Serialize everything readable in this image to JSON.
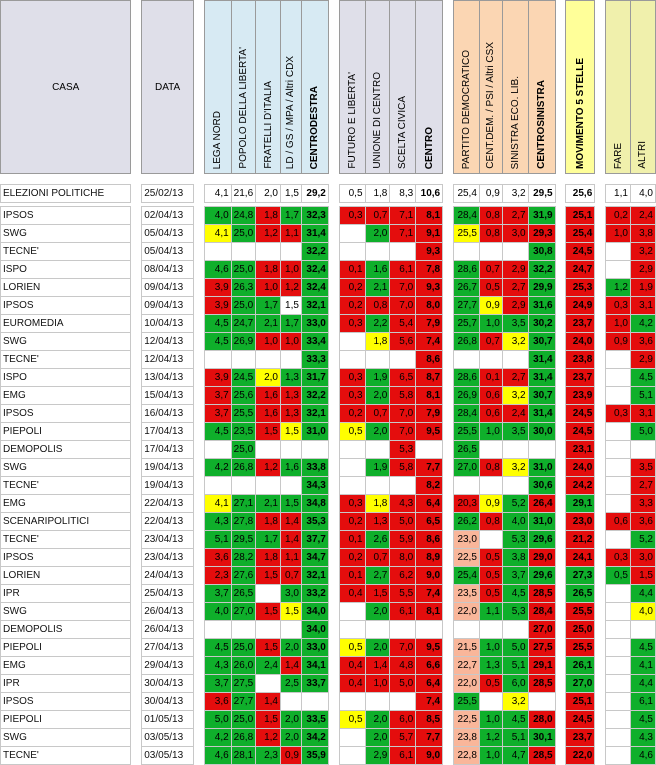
{
  "headers": {
    "casa": "CASA",
    "data": "DATA",
    "centrodestra_parties": [
      "LEGA NORD",
      "POPOLO DELLA LIBERTA'",
      "FRATELLI D'ITALIA",
      "LD / GS / MPA / Altri CDX"
    ],
    "centrodestra_total": "CENTRODESTRA",
    "centro_parties": [
      "FUTURO E LIBERTA'",
      "UNIONE DI CENTRO",
      "SCELTA CIVICA"
    ],
    "centro_total": "CENTRO",
    "centrosinistra_parties": [
      "PARTITO DEMOCRATICO",
      "CENT.DEM. / PSI / Altri CSX",
      "SINISTRA ECO. LIB."
    ],
    "centrosinistra_total": "CENTROSINISTRA",
    "m5s": "MOVIMENTO 5 STELLE",
    "others": [
      "FARE",
      "ALTRI"
    ]
  },
  "colors": {
    "red": "#e40d0d",
    "green": "#0faf2b",
    "yellow": "#ffff00",
    "pink": "#f9b69a",
    "light_yellow": "#ffffbb",
    "header_grey": "#dfdfe9",
    "header_blue": "#d7eaf3",
    "header_orange": "#fbd6b3",
    "header_yellow": "#ffff99",
    "header_olive": "#f0f0ac"
  },
  "legend_codes": {
    "R": "red",
    "G": "green",
    "Y": "yellow",
    "P": "pink",
    "L": "light yellow",
    "W": "white"
  },
  "rows": [
    {
      "house": "ELEZIONI POLITICHE",
      "date": "25/02/13",
      "cells": [
        "4,1:W",
        "21,6:W",
        "2,0:W",
        "1,5:W",
        "29,2:W",
        "0,5:W",
        "1,8:W",
        "8,3:W",
        "10,6:W",
        "25,4:W",
        "0,9:W",
        "3,2:W",
        "29,5:W",
        "25,6:W",
        "1,1:W",
        "4,0:W"
      ]
    },
    {
      "house": "IPSOS",
      "date": "02/04/13",
      "cells": [
        "4,0:G",
        "24,8:G",
        "1,8:R",
        "1,7:G",
        "32,3:G",
        "0,3:R",
        "0,7:R",
        "7,1:R",
        "8,1:R",
        "28,4:G",
        "0,8:R",
        "2,7:R",
        "31,9:G",
        "25,1:R",
        "0,2:R",
        "2,4:R"
      ]
    },
    {
      "house": "SWG",
      "date": "05/04/13",
      "cells": [
        "4,1:Y",
        "25,0:G",
        "1,2:R",
        "1,1:R",
        "31,4:G",
        "",
        "2,0:G",
        "7,1:R",
        "9,1:R",
        "25,5:Y",
        "0,8:R",
        "3,0:R",
        "29,3:R",
        "25,4:R",
        "1,0:R",
        "3,8:R"
      ]
    },
    {
      "house": "TECNE'",
      "date": "05/04/13",
      "cells": [
        "",
        "",
        "",
        "",
        "32,2:G",
        "",
        "",
        "",
        "9,3:R",
        "",
        "",
        "",
        "30,8:G",
        "24,5:R",
        "",
        "3,2:R"
      ]
    },
    {
      "house": "ISPO",
      "date": "08/04/13",
      "cells": [
        "4,6:G",
        "25,0:G",
        "1,8:R",
        "1,0:R",
        "32,4:G",
        "0,1:R",
        "1,6:G",
        "6,1:R",
        "7,8:R",
        "28,6:G",
        "0,7:R",
        "2,9:R",
        "32,2:G",
        "24,7:R",
        "",
        "2,9:R"
      ]
    },
    {
      "house": "LORIEN",
      "date": "09/04/13",
      "cells": [
        "3,9:R",
        "26,3:G",
        "1,0:R",
        "1,2:R",
        "32,4:G",
        "0,2:R",
        "2,1:G",
        "7,0:R",
        "9,3:R",
        "26,7:G",
        "0,5:R",
        "2,7:R",
        "29,9:G",
        "25,3:R",
        "1,2:G",
        "1,9:R"
      ]
    },
    {
      "house": "IPSOS",
      "date": "09/04/13",
      "cells": [
        "3,9:R",
        "25,0:G",
        "1,7:G",
        "1,5:W",
        "32,1:G",
        "0,2:R",
        "0,8:R",
        "7,0:R",
        "8,0:R",
        "27,7:G",
        "0,9:Y",
        "2,9:R",
        "31,6:G",
        "24,9:R",
        "0,3:R",
        "3,1:R"
      ]
    },
    {
      "house": "EUROMEDIA",
      "date": "10/04/13",
      "cells": [
        "4,5:G",
        "24,7:G",
        "2,1:G",
        "1,7:G",
        "33,0:G",
        "0,3:R",
        "2,2:G",
        "5,4:R",
        "7,9:R",
        "25,7:G",
        "1,0:G",
        "3,5:G",
        "30,2:G",
        "23,7:R",
        "1,0:R",
        "4,2:G"
      ]
    },
    {
      "house": "SWG",
      "date": "12/04/13",
      "cells": [
        "4,5:G",
        "26,9:G",
        "1,0:R",
        "1,0:R",
        "33,4:G",
        "",
        "1,8:Y",
        "5,6:R",
        "7,4:R",
        "26,8:G",
        "0,7:R",
        "3,2:Y",
        "30,7:G",
        "24,0:R",
        "0,9:R",
        "3,6:R"
      ]
    },
    {
      "house": "TECNE'",
      "date": "12/04/13",
      "cells": [
        "",
        "",
        "",
        "",
        "33,3:G",
        "",
        "",
        "",
        "8,6:R",
        "",
        "",
        "",
        "31,4:G",
        "23,8:R",
        "",
        "2,9:R"
      ]
    },
    {
      "house": "ISPO",
      "date": "13/04/13",
      "cells": [
        "3,9:R",
        "24,5:G",
        "2,0:Y",
        "1,3:G",
        "31,7:G",
        "0,3:R",
        "1,9:G",
        "6,5:R",
        "8,7:R",
        "28,6:G",
        "0,1:R",
        "2,7:R",
        "31,4:G",
        "23,7:R",
        "",
        "4,5:G"
      ]
    },
    {
      "house": "EMG",
      "date": "15/04/13",
      "cells": [
        "3,7:R",
        "25,6:G",
        "1,6:R",
        "1,3:R",
        "32,2:G",
        "0,3:R",
        "2,0:G",
        "5,8:R",
        "8,1:R",
        "26,9:G",
        "0,6:R",
        "3,2:Y",
        "30,7:G",
        "23,9:R",
        "",
        "5,1:G"
      ]
    },
    {
      "house": "IPSOS",
      "date": "16/04/13",
      "cells": [
        "3,7:R",
        "25,5:G",
        "1,6:R",
        "1,3:R",
        "32,1:G",
        "0,2:R",
        "0,7:R",
        "7,0:R",
        "7,9:R",
        "28,4:G",
        "0,6:R",
        "2,4:R",
        "31,4:G",
        "24,5:R",
        "0,3:R",
        "3,1:R"
      ]
    },
    {
      "house": "PIEPOLI",
      "date": "17/04/13",
      "cells": [
        "4,5:G",
        "23,5:G",
        "1,5:R",
        "1,5:Y",
        "31,0:G",
        "0,5:Y",
        "2,0:G",
        "7,0:R",
        "9,5:R",
        "25,5:G",
        "1,0:G",
        "3,5:G",
        "30,0:G",
        "24,5:R",
        "",
        "5,0:G"
      ]
    },
    {
      "house": "DEMOPOLIS",
      "date": "17/04/13",
      "cells": [
        "",
        "25,0:G",
        "",
        "",
        "",
        "",
        "",
        "5,3:R",
        "",
        "26,5:G",
        "",
        "",
        "",
        "23,1:R",
        "",
        ""
      ]
    },
    {
      "house": "SWG",
      "date": "19/04/13",
      "cells": [
        "4,2:G",
        "26,8:G",
        "1,2:R",
        "1,6:G",
        "33,8:G",
        "",
        "1,9:G",
        "5,8:R",
        "7,7:R",
        "27,0:G",
        "0,8:R",
        "3,2:Y",
        "31,0:G",
        "24,0:R",
        "",
        "3,5:R"
      ]
    },
    {
      "house": "TECNE'",
      "date": "19/04/13",
      "cells": [
        "",
        "",
        "",
        "",
        "34,3:G",
        "",
        "",
        "",
        "8,2:R",
        "",
        "",
        "",
        "30,6:G",
        "24,2:R",
        "",
        "2,7:R"
      ]
    },
    {
      "house": "EMG",
      "date": "22/04/13",
      "cells": [
        "4,1:Y",
        "27,1:G",
        "2,1:G",
        "1,5:G",
        "34,8:G",
        "0,3:R",
        "1,8:Y",
        "4,3:R",
        "6,4:R",
        "20,3:R",
        "0,9:Y",
        "5,2:G",
        "26,4:R",
        "29,1:G",
        "",
        "3,3:R"
      ]
    },
    {
      "house": "SCENARIPOLITICI",
      "date": "22/04/13",
      "cells": [
        "4,3:G",
        "27,8:G",
        "1,8:R",
        "1,4:R",
        "35,3:G",
        "0,2:R",
        "1,3:R",
        "5,0:R",
        "6,5:R",
        "26,2:G",
        "0,8:R",
        "4,0:G",
        "31,0:G",
        "23,0:R",
        "0,6:R",
        "3,6:R"
      ]
    },
    {
      "house": "TECNE'",
      "date": "23/04/13",
      "cells": [
        "5,1:G",
        "29,5:G",
        "1,7:G",
        "1,4:R",
        "37,7:G",
        "0,1:R",
        "2,6:G",
        "5,9:R",
        "8,6:R",
        "23,0:P",
        "",
        "5,3:G",
        "29,6:G",
        "21,2:R",
        "",
        "5,2:G"
      ]
    },
    {
      "house": "IPSOS",
      "date": "23/04/13",
      "cells": [
        "3,6:R",
        "28,2:G",
        "1,8:R",
        "1,1:R",
        "34,7:G",
        "0,2:R",
        "0,7:R",
        "8,0:R",
        "8,9:R",
        "22,5:P",
        "0,5:R",
        "3,8:G",
        "29,0:R",
        "24,1:R",
        "0,3:R",
        "3,0:R"
      ]
    },
    {
      "house": "LORIEN",
      "date": "24/04/13",
      "cells": [
        "2,3:R",
        "27,6:G",
        "1,5:R",
        "0,7:R",
        "32,1:G",
        "0,1:R",
        "2,7:G",
        "6,2:R",
        "9,0:R",
        "25,4:G",
        "0,5:R",
        "3,7:G",
        "29,6:G",
        "27,3:G",
        "0,5:G",
        "1,5:R"
      ]
    },
    {
      "house": "IPR",
      "date": "25/04/13",
      "cells": [
        "3,7:G",
        "26,5:G",
        "",
        "3,0:G",
        "33,2:G",
        "0,4:R",
        "1,5:R",
        "5,5:R",
        "7,4:R",
        "23,5:P",
        "0,5:R",
        "4,5:G",
        "28,5:R",
        "26,5:G",
        "",
        "4,4:G"
      ]
    },
    {
      "house": "SWG",
      "date": "26/04/13",
      "cells": [
        "4,0:G",
        "27,0:G",
        "1,5:R",
        "1,5:Y",
        "34,0:G",
        "",
        "2,0:G",
        "6,1:R",
        "8,1:R",
        "22,0:P",
        "1,1:G",
        "5,3:G",
        "28,4:R",
        "25,5:R",
        "",
        "4,0:Y"
      ]
    },
    {
      "house": "DEMOPOLIS",
      "date": "26/04/13",
      "cells": [
        "",
        "",
        "",
        "",
        "34,0:G",
        "",
        "",
        "",
        "",
        "",
        "",
        "",
        "27,0:R",
        "25,0:R",
        "",
        ""
      ]
    },
    {
      "house": "PIEPOLI",
      "date": "27/04/13",
      "cells": [
        "4,5:G",
        "25,0:G",
        "1,5:R",
        "2,0:G",
        "33,0:G",
        "0,5:Y",
        "2,0:G",
        "7,0:R",
        "9,5:R",
        "21,5:P",
        "1,0:G",
        "5,0:G",
        "27,5:R",
        "25,5:R",
        "",
        "4,5:G"
      ]
    },
    {
      "house": "EMG",
      "date": "29/04/13",
      "cells": [
        "4,3:G",
        "26,0:G",
        "2,4:G",
        "1,4:R",
        "34,1:G",
        "0,4:R",
        "1,4:R",
        "4,8:R",
        "6,6:R",
        "22,7:P",
        "1,3:G",
        "5,1:G",
        "29,1:R",
        "26,1:G",
        "",
        "4,1:G"
      ]
    },
    {
      "house": "IPR",
      "date": "30/04/13",
      "cells": [
        "3,7:G",
        "27,5:G",
        "",
        "2,5:G",
        "33,7:G",
        "0,4:R",
        "1,0:R",
        "5,0:R",
        "6,4:R",
        "22,0:P",
        "0,5:R",
        "6,0:G",
        "28,5:R",
        "27,0:G",
        "",
        "4,4:G"
      ]
    },
    {
      "house": "IPSOS",
      "date": "30/04/13",
      "cells": [
        "3,6:R",
        "27,7:G",
        "1,4:R",
        "",
        "",
        "",
        "",
        "",
        "7,4:R",
        "25,5:G",
        "",
        "3,2:Y",
        "",
        "25,1:R",
        "",
        "6,1:G"
      ]
    },
    {
      "house": "PIEPOLI",
      "date": "01/05/13",
      "cells": [
        "5,0:G",
        "25,0:G",
        "1,5:R",
        "2,0:G",
        "33,5:G",
        "0,5:Y",
        "2,0:G",
        "6,0:R",
        "8,5:R",
        "22,5:P",
        "1,0:G",
        "4,5:G",
        "28,0:R",
        "24,5:R",
        "",
        "4,5:G"
      ]
    },
    {
      "house": "SWG",
      "date": "03/05/13",
      "cells": [
        "4,2:G",
        "26,8:G",
        "1,2:R",
        "2,0:G",
        "34,2:G",
        "",
        "2,0:G",
        "5,7:R",
        "7,7:R",
        "23,8:P",
        "1,2:G",
        "5,1:G",
        "30,1:G",
        "23,7:R",
        "",
        "4,3:G"
      ]
    },
    {
      "house": "TECNE'",
      "date": "03/05/13",
      "cells": [
        "4,6:G",
        "28,1:G",
        "2,3:G",
        "0,9:R",
        "35,9:G",
        "",
        "2,9:G",
        "6,1:R",
        "9,0:R",
        "22,8:P",
        "1,0:G",
        "4,7:G",
        "28,5:R",
        "22,0:R",
        "",
        "4,6:G"
      ]
    }
  ]
}
